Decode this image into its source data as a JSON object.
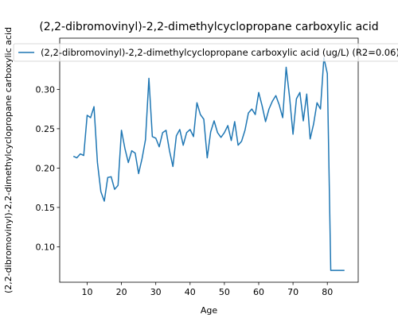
{
  "chart_data": {
    "type": "line",
    "title": "(2,2-dibromovinyl)-2,2-dimethylcyclopropane carboxylic acid",
    "xlabel": "Age",
    "ylabel": "(2,2-dibromovinyl)-2,2-dimethylcyclopropane carboxylic acid",
    "xlim": [
      2,
      89
    ],
    "ylim": [
      0.055,
      0.365
    ],
    "xticks": [
      10,
      20,
      30,
      40,
      50,
      60,
      70,
      80
    ],
    "yticks": [
      0.1,
      0.15,
      0.2,
      0.25,
      0.3
    ],
    "ytick_labels": [
      "0.10",
      "0.15",
      "0.20",
      "0.25",
      "0.30"
    ],
    "grid": false,
    "legend_position": "top-center",
    "series": [
      {
        "name": "(2,2-dibromovinyl)-2,2-dimethylcyclopropane carboxylic acid (ug/L) (R2=0.06)",
        "color": "#1f77b4",
        "x": [
          6,
          7,
          8,
          9,
          10,
          11,
          12,
          13,
          14,
          15,
          16,
          17,
          18,
          19,
          20,
          21,
          22,
          23,
          24,
          25,
          26,
          27,
          28,
          29,
          30,
          31,
          32,
          33,
          34,
          35,
          36,
          37,
          38,
          39,
          40,
          41,
          42,
          43,
          44,
          45,
          46,
          47,
          48,
          49,
          50,
          51,
          52,
          53,
          54,
          55,
          56,
          57,
          58,
          59,
          60,
          61,
          62,
          63,
          64,
          65,
          66,
          67,
          68,
          69,
          70,
          71,
          72,
          73,
          74,
          75,
          76,
          77,
          78,
          79,
          80,
          81,
          82,
          83,
          84,
          85
        ],
        "y": [
          0.215,
          0.213,
          0.218,
          0.216,
          0.267,
          0.264,
          0.278,
          0.207,
          0.17,
          0.158,
          0.188,
          0.189,
          0.173,
          0.178,
          0.248,
          0.225,
          0.207,
          0.222,
          0.219,
          0.193,
          0.212,
          0.236,
          0.314,
          0.24,
          0.238,
          0.227,
          0.245,
          0.248,
          0.222,
          0.202,
          0.241,
          0.249,
          0.229,
          0.245,
          0.249,
          0.24,
          0.283,
          0.268,
          0.262,
          0.213,
          0.246,
          0.26,
          0.245,
          0.239,
          0.245,
          0.254,
          0.235,
          0.259,
          0.229,
          0.234,
          0.248,
          0.27,
          0.275,
          0.268,
          0.296,
          0.279,
          0.259,
          0.275,
          0.285,
          0.292,
          0.28,
          0.264,
          0.328,
          0.29,
          0.243,
          0.288,
          0.296,
          0.26,
          0.294,
          0.237,
          0.256,
          0.283,
          0.275,
          0.34,
          0.32,
          0.07,
          0.07,
          0.07,
          0.07,
          0.07
        ]
      }
    ]
  }
}
